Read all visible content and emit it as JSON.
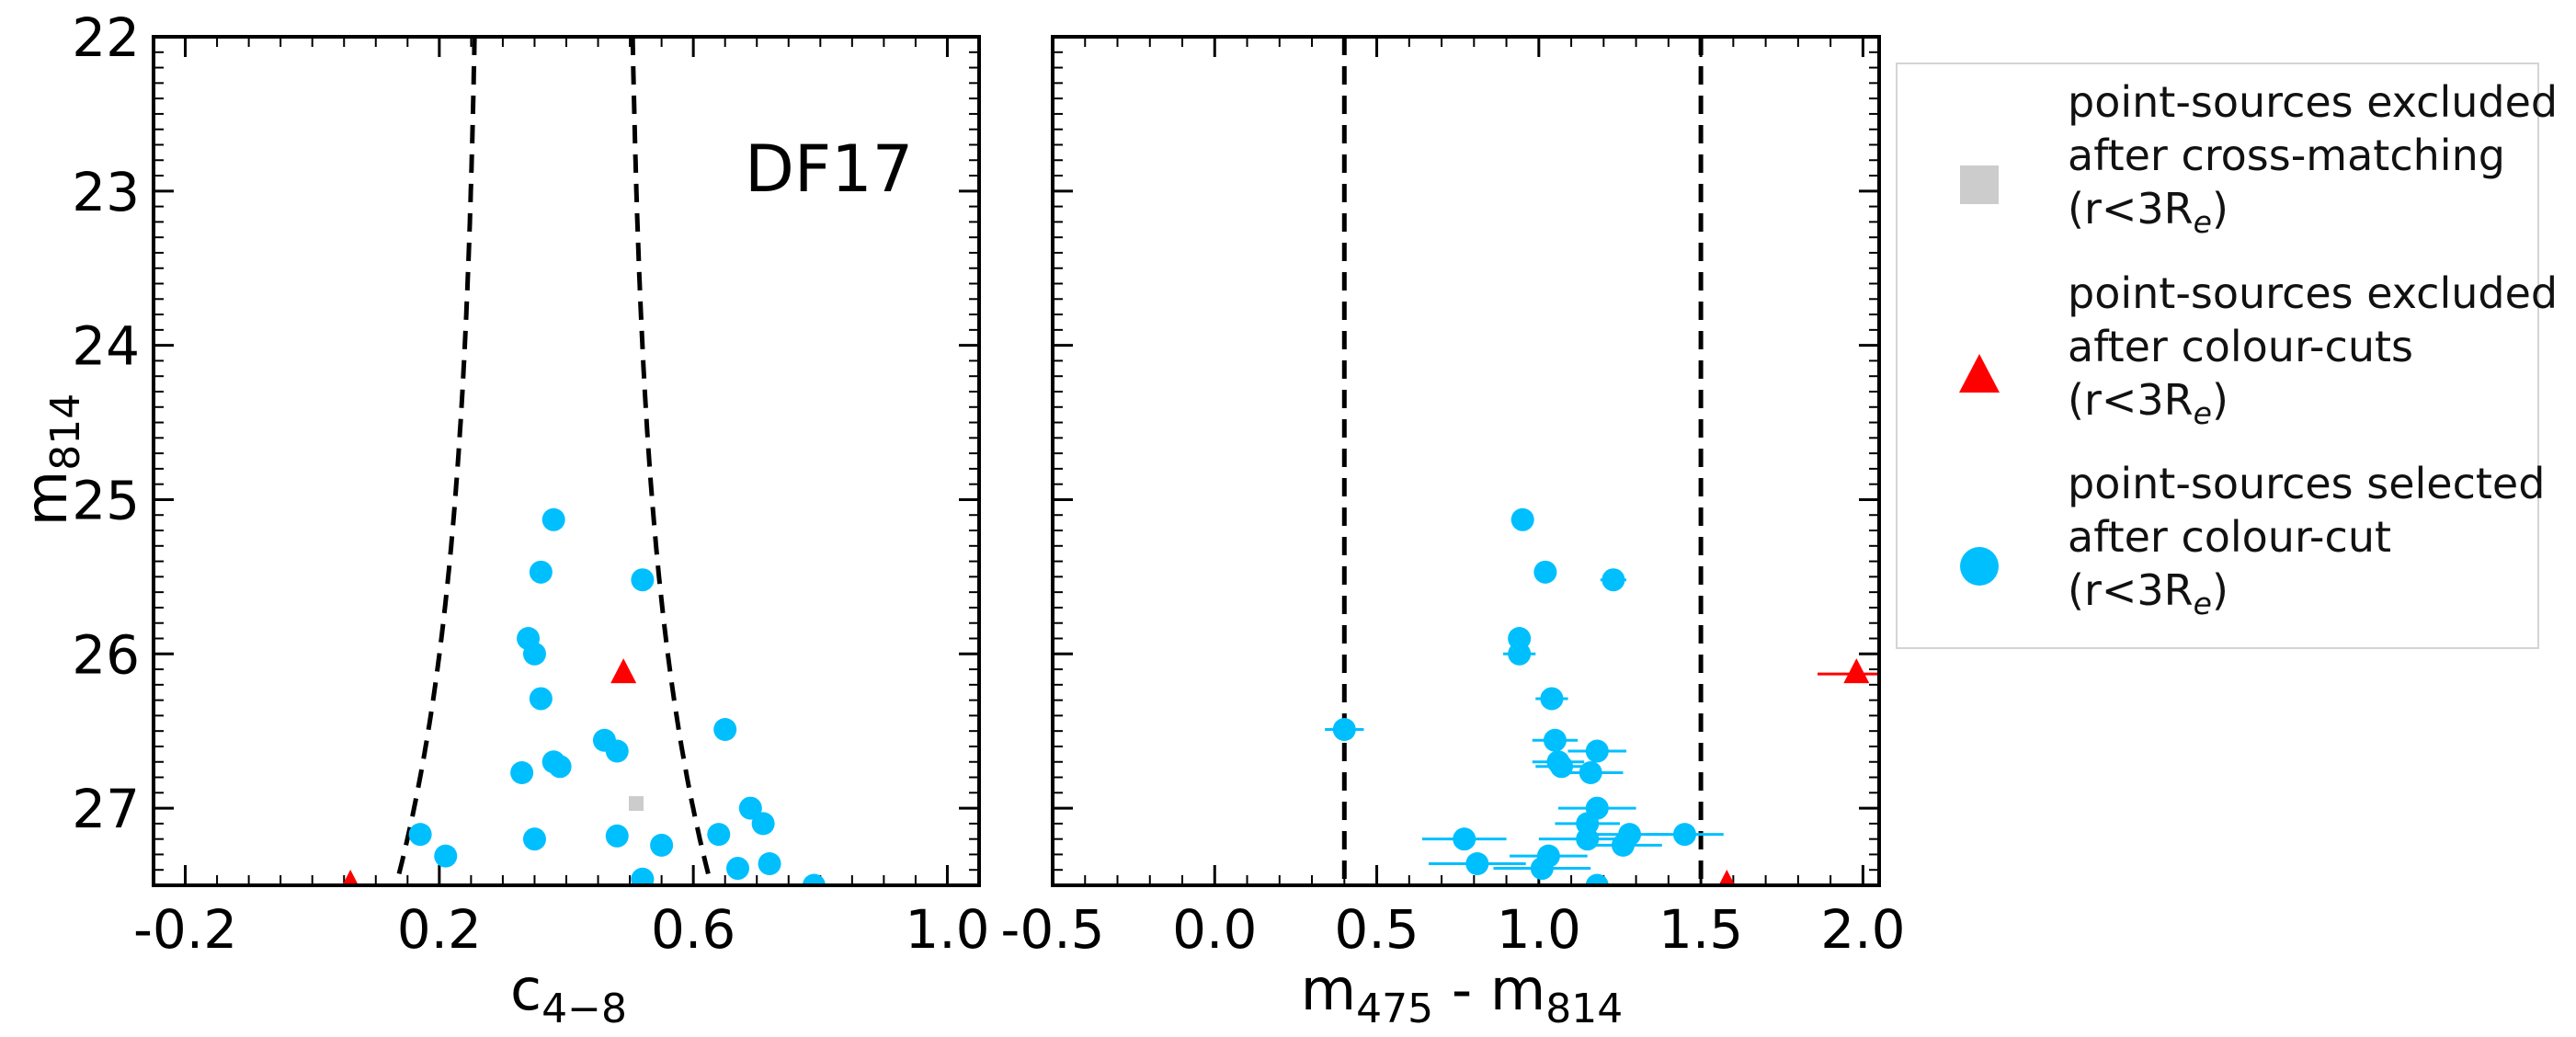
{
  "chart_data": [
    {
      "type": "scatter",
      "panel": "left",
      "annotation": "DF17",
      "xlabel": "c4−8",
      "ylabel": "m814",
      "xlim": [
        -0.25,
        1.05
      ],
      "ylim": [
        27.5,
        22.0
      ],
      "x_ticks": [
        "-0.2",
        "0.2",
        "0.6",
        "1.0"
      ],
      "y_ticks": [
        "22",
        "23",
        "24",
        "25",
        "26",
        "27"
      ],
      "boundary": "dashed black curves",
      "series": [
        {
          "name": "point-sources excluded after cross-matching (r<3Re)",
          "marker": "square",
          "color": "#cccccc",
          "points": [
            [
              0.51,
              26.97
            ]
          ]
        },
        {
          "name": "point-sources excluded after colour-cuts (r<3Re)",
          "marker": "triangle",
          "color": "#ff0000",
          "points": [
            [
              0.49,
              26.13
            ],
            [
              0.06,
              27.5
            ]
          ]
        },
        {
          "name": "point-sources selected after colour-cut (r<3Re)",
          "marker": "circle",
          "color": "#00bfff",
          "points": [
            [
              0.38,
              25.13
            ],
            [
              0.36,
              25.47
            ],
            [
              0.52,
              25.52
            ],
            [
              0.34,
              25.9
            ],
            [
              0.35,
              26.0
            ],
            [
              0.36,
              26.29
            ],
            [
              0.65,
              26.49
            ],
            [
              0.46,
              26.56
            ],
            [
              0.48,
              26.63
            ],
            [
              0.38,
              26.7
            ],
            [
              0.39,
              26.73
            ],
            [
              0.33,
              26.77
            ],
            [
              0.69,
              27.0
            ],
            [
              0.71,
              27.1
            ],
            [
              0.17,
              27.17
            ],
            [
              0.48,
              27.18
            ],
            [
              0.64,
              27.17
            ],
            [
              0.35,
              27.2
            ],
            [
              0.55,
              27.24
            ],
            [
              0.21,
              27.31
            ],
            [
              0.72,
              27.36
            ],
            [
              0.67,
              27.39
            ],
            [
              0.52,
              27.46
            ],
            [
              0.79,
              27.5
            ]
          ]
        }
      ]
    },
    {
      "type": "scatter",
      "panel": "right",
      "xlabel": "m475 - m814",
      "xlim": [
        -0.5,
        2.05
      ],
      "ylim": [
        27.5,
        22.0
      ],
      "x_ticks": [
        "-0.5",
        "0.0",
        "0.5",
        "1.0",
        "1.5",
        "2.0"
      ],
      "vlines": [
        0.4,
        1.5
      ],
      "series": [
        {
          "name": "point-sources excluded after colour-cuts (r<3Re)",
          "marker": "triangle",
          "color": "#ff0000",
          "points": [
            [
              1.98,
              26.13,
              0.12
            ],
            [
              1.58,
              27.5,
              0.0
            ]
          ]
        },
        {
          "name": "point-sources selected after colour-cut (r<3Re)",
          "marker": "circle",
          "color": "#00bfff",
          "points": [
            [
              0.95,
              25.13,
              0.02
            ],
            [
              1.02,
              25.47,
              0.03
            ],
            [
              1.23,
              25.52,
              0.04
            ],
            [
              0.94,
              25.9,
              0.03
            ],
            [
              0.94,
              26.0,
              0.05
            ],
            [
              1.04,
              26.29,
              0.05
            ],
            [
              0.4,
              26.49,
              0.06
            ],
            [
              1.05,
              26.56,
              0.07
            ],
            [
              1.18,
              26.63,
              0.09
            ],
            [
              1.06,
              26.7,
              0.08
            ],
            [
              1.07,
              26.73,
              0.08
            ],
            [
              1.16,
              26.77,
              0.1
            ],
            [
              1.18,
              27.0,
              0.12
            ],
            [
              1.15,
              27.1,
              0.1
            ],
            [
              1.45,
              27.17,
              0.12
            ],
            [
              1.28,
              27.17,
              0.12
            ],
            [
              0.77,
              27.2,
              0.13
            ],
            [
              1.15,
              27.2,
              0.15
            ],
            [
              1.26,
              27.24,
              0.12
            ],
            [
              1.03,
              27.31,
              0.12
            ],
            [
              0.81,
              27.36,
              0.15
            ],
            [
              1.01,
              27.39,
              0.15
            ],
            [
              1.18,
              27.5,
              0.15
            ]
          ]
        }
      ]
    }
  ],
  "legend": {
    "entries": [
      {
        "marker": "square",
        "color": "#cccccc",
        "lines": [
          "point-sources excluded",
          "after cross-matching",
          "(r<3R",
          "e",
          ")"
        ]
      },
      {
        "marker": "triangle",
        "color": "#ff0000",
        "lines": [
          "point-sources excluded",
          "after colour-cuts",
          "(r<3R",
          "e",
          ")"
        ]
      },
      {
        "marker": "circle",
        "color": "#00bfff",
        "lines": [
          "point-sources selected",
          "after colour-cut",
          "(r<3R",
          "e",
          ")"
        ]
      }
    ]
  }
}
